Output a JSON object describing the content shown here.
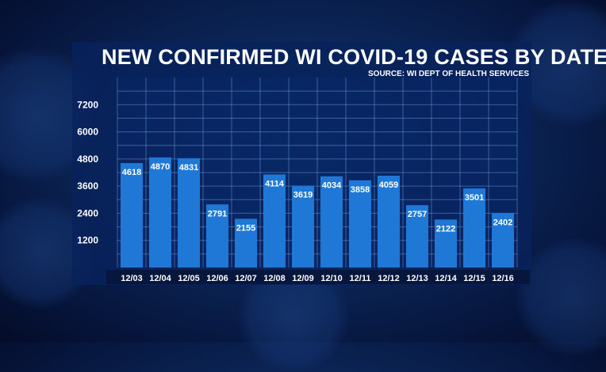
{
  "chart_data": {
    "type": "bar",
    "title": "NEW CONFIRMED WI COVID-19 CASES BY DATE",
    "subtitle": "SOURCE: WI DEPT OF HEALTH SERVICES",
    "categories": [
      "12/03",
      "12/04",
      "12/05",
      "12/06",
      "12/07",
      "12/08",
      "12/09",
      "12/10",
      "12/11",
      "12/12",
      "12/13",
      "12/14",
      "12/15",
      "12/16"
    ],
    "values": [
      4618,
      4870,
      4831,
      2791,
      2155,
      4114,
      3619,
      4034,
      3858,
      4059,
      2757,
      2122,
      3501,
      2402
    ],
    "yticks": [
      "1200",
      "2400",
      "3600",
      "4800",
      "6000",
      "7200"
    ],
    "ylim": [
      0,
      8400
    ],
    "grid": true,
    "bar_color": "#1f78d6",
    "xlabel": "",
    "ylabel": ""
  }
}
